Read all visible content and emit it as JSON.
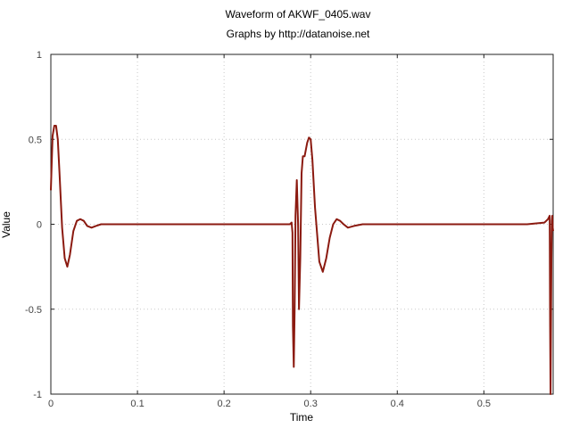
{
  "chart_data": {
    "type": "line",
    "title": "Waveform of AKWF_0405.wav",
    "subtitle": "Graphs by http://datanoise.net",
    "xlabel": "Time",
    "ylabel": "Value",
    "xlim": [
      0,
      0.58
    ],
    "ylim": [
      -1,
      1
    ],
    "xticks": [
      0,
      0.1,
      0.2,
      0.3,
      0.4,
      0.5
    ],
    "xtick_labels": [
      "0",
      "0.1",
      "0.2",
      "0.3",
      "0.4",
      "0.5"
    ],
    "yticks": [
      -1,
      -0.5,
      0,
      0.5,
      1
    ],
    "ytick_labels": [
      "-1",
      "-0.5",
      "0",
      "0.5",
      "1"
    ],
    "grid": true,
    "color": "#8b1a10",
    "series": [
      {
        "x": [
          0,
          0.002,
          0.004,
          0.006,
          0.008,
          0.01,
          0.013,
          0.016,
          0.019,
          0.022,
          0.026,
          0.03,
          0.034,
          0.038,
          0.042,
          0.047,
          0.052,
          0.058,
          0.065,
          0.075,
          0.1,
          0.15,
          0.2,
          0.25,
          0.27,
          0.276,
          0.278,
          0.279,
          0.2795,
          0.2805,
          0.2815,
          0.2825,
          0.284,
          0.2855,
          0.2865,
          0.288,
          0.2895,
          0.291,
          0.293,
          0.296,
          0.298,
          0.3,
          0.302,
          0.305,
          0.31,
          0.314,
          0.318,
          0.322,
          0.326,
          0.33,
          0.334,
          0.338,
          0.343,
          0.35,
          0.36,
          0.38,
          0.45,
          0.5,
          0.55,
          0.57,
          0.574,
          0.576,
          0.5765,
          0.577,
          0.5775,
          0.578,
          0.5785,
          0.579,
          0.5795,
          0.58
        ],
        "y": [
          0.2,
          0.52,
          0.58,
          0.58,
          0.5,
          0.3,
          -0.02,
          -0.2,
          -0.25,
          -0.18,
          -0.04,
          0.02,
          0.03,
          0.02,
          -0.01,
          -0.02,
          -0.01,
          0.0,
          0.0,
          0.0,
          0.0,
          0.0,
          0.0,
          0.0,
          0.0,
          0.0,
          0.01,
          -0.05,
          -0.6,
          -0.84,
          -0.5,
          0.05,
          0.26,
          0.0,
          -0.5,
          -0.2,
          0.3,
          0.4,
          0.4,
          0.48,
          0.51,
          0.5,
          0.38,
          0.1,
          -0.22,
          -0.28,
          -0.2,
          -0.08,
          0.0,
          0.03,
          0.02,
          0.0,
          -0.02,
          -0.01,
          0.0,
          0.0,
          0.0,
          0.0,
          0.0,
          0.01,
          0.03,
          0.05,
          -0.6,
          -1.0,
          -0.6,
          -0.2,
          0.02,
          0.05,
          -0.02,
          -0.04
        ]
      }
    ]
  }
}
